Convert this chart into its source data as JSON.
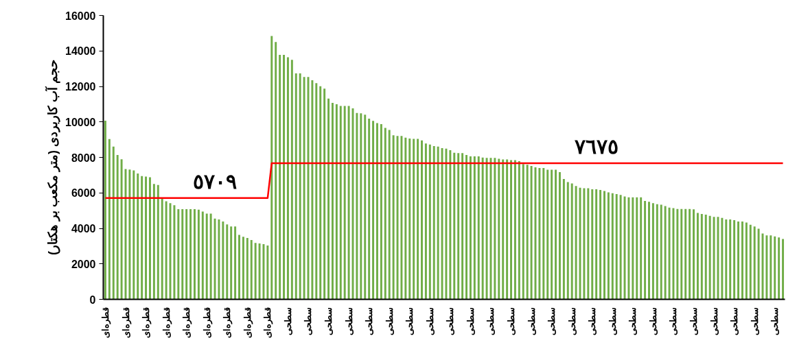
{
  "chart_data": {
    "type": "bar",
    "ylabel": "حجم آب کاربردی (متر مکعب بر هکتار)",
    "categories": [
      "قطره‌ای",
      null,
      null,
      null,
      null,
      "قطره‌ای",
      null,
      null,
      null,
      null,
      "قطره‌ای",
      null,
      null,
      null,
      null,
      "قطره‌ای",
      null,
      null,
      null,
      null,
      "قطره‌ای",
      null,
      null,
      null,
      null,
      "قطره‌ای",
      null,
      null,
      null,
      null,
      "قطره‌ای",
      null,
      null,
      null,
      null,
      "قطره‌ای",
      null,
      null,
      null,
      null,
      "قطره‌ای",
      null,
      null,
      null,
      null,
      "سطحی",
      null,
      null,
      null,
      null,
      "سطحی",
      null,
      null,
      null,
      null,
      "سطحی",
      null,
      null,
      null,
      null,
      "سطحی",
      null,
      null,
      null,
      null,
      "سطحی",
      null,
      null,
      null,
      null,
      "سطحی",
      null,
      null,
      null,
      null,
      "سطحی",
      null,
      null,
      null,
      null,
      "سطحی",
      null,
      null,
      null,
      null,
      "سطحی",
      null,
      null,
      null,
      null,
      "سطحی",
      null,
      null,
      null,
      null,
      "سطحی",
      null,
      null,
      null,
      null,
      "سطحی",
      null,
      null,
      null,
      null,
      "سطحی",
      null,
      null,
      null,
      null,
      "سطحی",
      null,
      null,
      null,
      null,
      "سطحی",
      null,
      null,
      null,
      null,
      "سطحی",
      null,
      null,
      null,
      null,
      "سطحی",
      null,
      null,
      null,
      null,
      "سطحی",
      null,
      null,
      null,
      null,
      "سطحی",
      null,
      null,
      null,
      null,
      "سطحی",
      null,
      null,
      null,
      null,
      "سطحی",
      null,
      null,
      null,
      null,
      "سطحی",
      null,
      null,
      null,
      null,
      "سطحی",
      null,
      null,
      null,
      null,
      "سطحی",
      null,
      null,
      null,
      null,
      "سطحی",
      null,
      null
    ],
    "series": [
      {
        "color": "#70ad47",
        "values": [
          10070,
          9030,
          8610,
          8140,
          7890,
          7340,
          7310,
          7270,
          7090,
          6950,
          6920,
          6880,
          6500,
          6440,
          5700,
          5530,
          5420,
          5300,
          5080,
          5080,
          5080,
          5080,
          5080,
          5050,
          4950,
          4830,
          4830,
          4550,
          4500,
          4390,
          4220,
          4110,
          4110,
          3630,
          3530,
          3460,
          3340,
          3180,
          3150,
          3110,
          3030,
          14840,
          14500,
          13780,
          13780,
          13640,
          13500,
          12730,
          12730,
          12530,
          12530,
          12350,
          12180,
          12010,
          11870,
          11310,
          11070,
          11000,
          10900,
          10900,
          10900,
          10760,
          10500,
          10480,
          10410,
          10180,
          10060,
          9930,
          9870,
          9660,
          9550,
          9250,
          9210,
          9210,
          9110,
          9060,
          9040,
          9040,
          8960,
          8780,
          8720,
          8640,
          8610,
          8520,
          8490,
          8410,
          8260,
          8240,
          8240,
          8140,
          8060,
          8060,
          8060,
          7990,
          7970,
          7970,
          7970,
          7920,
          7880,
          7880,
          7850,
          7850,
          7790,
          7620,
          7580,
          7520,
          7440,
          7400,
          7400,
          7300,
          7300,
          7300,
          7170,
          6780,
          6610,
          6530,
          6390,
          6290,
          6260,
          6260,
          6200,
          6200,
          6160,
          6110,
          6030,
          5980,
          5930,
          5880,
          5800,
          5750,
          5750,
          5750,
          5750,
          5550,
          5500,
          5420,
          5360,
          5330,
          5260,
          5170,
          5140,
          5090,
          5090,
          5090,
          5090,
          5070,
          4870,
          4810,
          4770,
          4710,
          4650,
          4650,
          4590,
          4500,
          4500,
          4460,
          4390,
          4390,
          4330,
          4200,
          4110,
          3980,
          3710,
          3600,
          3600,
          3550,
          3490,
          3400
        ]
      },
      {
        "type": "line",
        "color": "#ff0000",
        "values": [
          5709,
          5709,
          5709,
          5709,
          5709,
          5709,
          5709,
          5709,
          5709,
          5709,
          5709,
          5709,
          5709,
          5709,
          5709,
          5709,
          5709,
          5709,
          5709,
          5709,
          5709,
          5709,
          5709,
          5709,
          5709,
          5709,
          5709,
          5709,
          5709,
          5709,
          5709,
          5709,
          5709,
          5709,
          5709,
          5709,
          5709,
          5709,
          5709,
          5709,
          5709,
          7675,
          7675,
          7675,
          7675,
          7675,
          7675,
          7675,
          7675,
          7675,
          7675,
          7675,
          7675,
          7675,
          7675,
          7675,
          7675,
          7675,
          7675,
          7675,
          7675,
          7675,
          7675,
          7675,
          7675,
          7675,
          7675,
          7675,
          7675,
          7675,
          7675,
          7675,
          7675,
          7675,
          7675,
          7675,
          7675,
          7675,
          7675,
          7675,
          7675,
          7675,
          7675,
          7675,
          7675,
          7675,
          7675,
          7675,
          7675,
          7675,
          7675,
          7675,
          7675,
          7675,
          7675,
          7675,
          7675,
          7675,
          7675,
          7675,
          7675,
          7675,
          7675,
          7675,
          7675,
          7675,
          7675,
          7675,
          7675,
          7675,
          7675,
          7675,
          7675,
          7675,
          7675,
          7675,
          7675,
          7675,
          7675,
          7675,
          7675,
          7675,
          7675,
          7675,
          7675,
          7675,
          7675,
          7675,
          7675,
          7675,
          7675,
          7675,
          7675,
          7675,
          7675,
          7675,
          7675,
          7675,
          7675,
          7675,
          7675,
          7675,
          7675,
          7675,
          7675,
          7675,
          7675,
          7675,
          7675,
          7675,
          7675,
          7675,
          7675,
          7675,
          7675,
          7675,
          7675,
          7675,
          7675,
          7675,
          7675,
          7675,
          7675,
          7675,
          7675,
          7675,
          7675,
          7675
        ],
        "value_labels": [
          null,
          null,
          null,
          null,
          null,
          null,
          null,
          null,
          null,
          null,
          null,
          null,
          null,
          null,
          null,
          null,
          null,
          null,
          null,
          null,
          null,
          null,
          null,
          null,
          null,
          null,
          null,
          "٥٧٠٩",
          null,
          null,
          null,
          null,
          null,
          null,
          null,
          null,
          null,
          null,
          null,
          null,
          null,
          null,
          null,
          null,
          null,
          null,
          null,
          null,
          null,
          null,
          null,
          null,
          null,
          null,
          null,
          null,
          null,
          null,
          null,
          null,
          null,
          null,
          null,
          null,
          null,
          null,
          null,
          null,
          null,
          null,
          null,
          null,
          null,
          null,
          null,
          null,
          null,
          null,
          null,
          null,
          null,
          null,
          null,
          null,
          null,
          null,
          null,
          null,
          null,
          null,
          null,
          null,
          null,
          null,
          null,
          null,
          null,
          null,
          null,
          null,
          null,
          null,
          null,
          null,
          null,
          null,
          null,
          null,
          null,
          null,
          null,
          null,
          null,
          null,
          null,
          null,
          null,
          null,
          null,
          null,
          null,
          "٧٦٧٥",
          null,
          null,
          null,
          null,
          null,
          null,
          null,
          null,
          null,
          null,
          null,
          null,
          null,
          null,
          null,
          null,
          null,
          null,
          null,
          null,
          null,
          null,
          null,
          null,
          null,
          null,
          null,
          null,
          null,
          null,
          null,
          null,
          null,
          null,
          null,
          null,
          null,
          null,
          null,
          null,
          null,
          null,
          null,
          null,
          null,
          null
        ]
      }
    ],
    "ylim": [
      0,
      16000
    ],
    "yticks": [
      0,
      2000,
      4000,
      6000,
      8000,
      10000,
      12000,
      14000,
      16000
    ],
    "grid": false
  }
}
